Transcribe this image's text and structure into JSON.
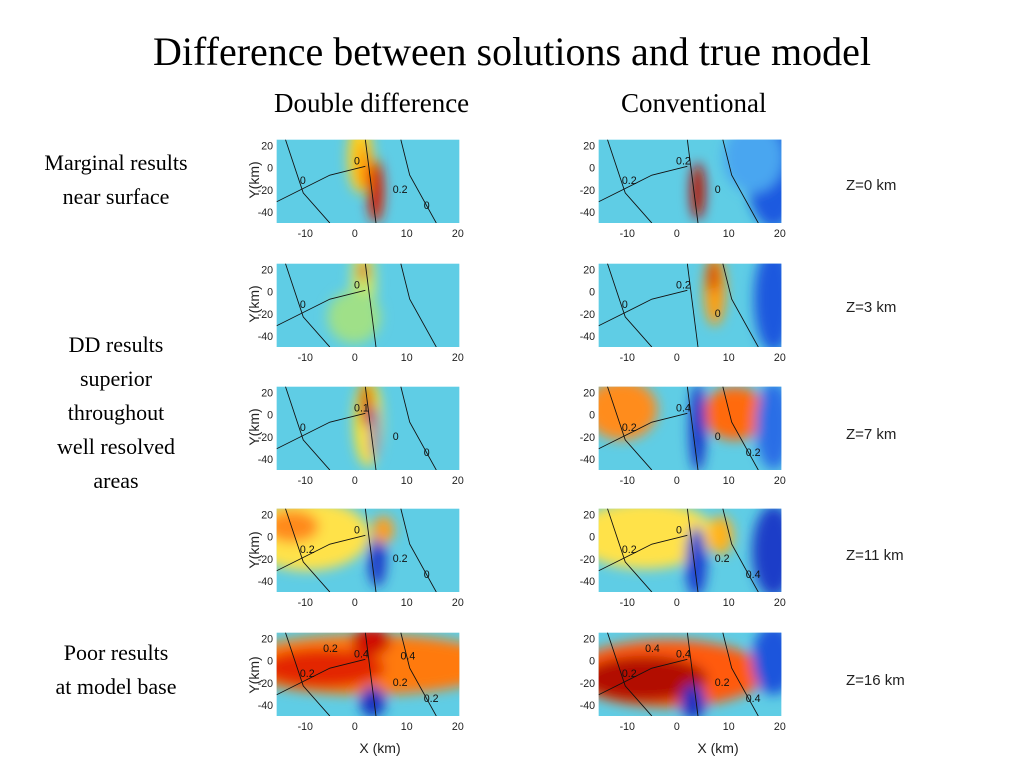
{
  "title": "Difference between solutions and true model",
  "columns": {
    "left": "Double difference",
    "right": "Conventional"
  },
  "side_notes": [
    {
      "lines": [
        "Marginal results",
        "near surface"
      ]
    },
    {
      "lines": [
        "DD results",
        "superior",
        "throughout",
        "well resolved",
        "areas"
      ]
    },
    {
      "lines": [
        "Poor results",
        "at model base"
      ]
    }
  ],
  "depth_labels": [
    "Z=0 km",
    "Z=3 km",
    "Z=7 km",
    "Z=11 km",
    "Z=16 km"
  ],
  "axes": {
    "ylabel": "Y(km)",
    "xlabel": "X (km)",
    "xticks": [
      "-10",
      "0",
      "10",
      "20"
    ],
    "yticks": [
      "20",
      "0",
      "-20",
      "-40"
    ]
  },
  "contour_labels": {
    "dd": [
      [
        "0",
        "0",
        "0.2",
        "0"
      ],
      [
        "0",
        "0"
      ],
      [
        "0",
        "0.1",
        "0",
        "0"
      ],
      [
        "0.2",
        "0",
        "0.2",
        "0"
      ],
      [
        "0.2",
        "0.4",
        "0.2",
        "0.2",
        "0.2",
        "0.4"
      ]
    ],
    "conv": [
      [
        "0.2",
        "0.2",
        "0"
      ],
      [
        "0",
        "0.2",
        "0"
      ],
      [
        "0.2",
        "0.4",
        "0",
        "0.2"
      ],
      [
        "0.2",
        "0",
        "0.2",
        "0.4"
      ],
      [
        "0.2",
        "0.4",
        "0.2",
        "0.4",
        "0.4"
      ]
    ]
  },
  "colors": {
    "colormap": "jet",
    "low": "#0a1fb5",
    "mid": "#7ddc8e",
    "high": "#b50d00"
  }
}
